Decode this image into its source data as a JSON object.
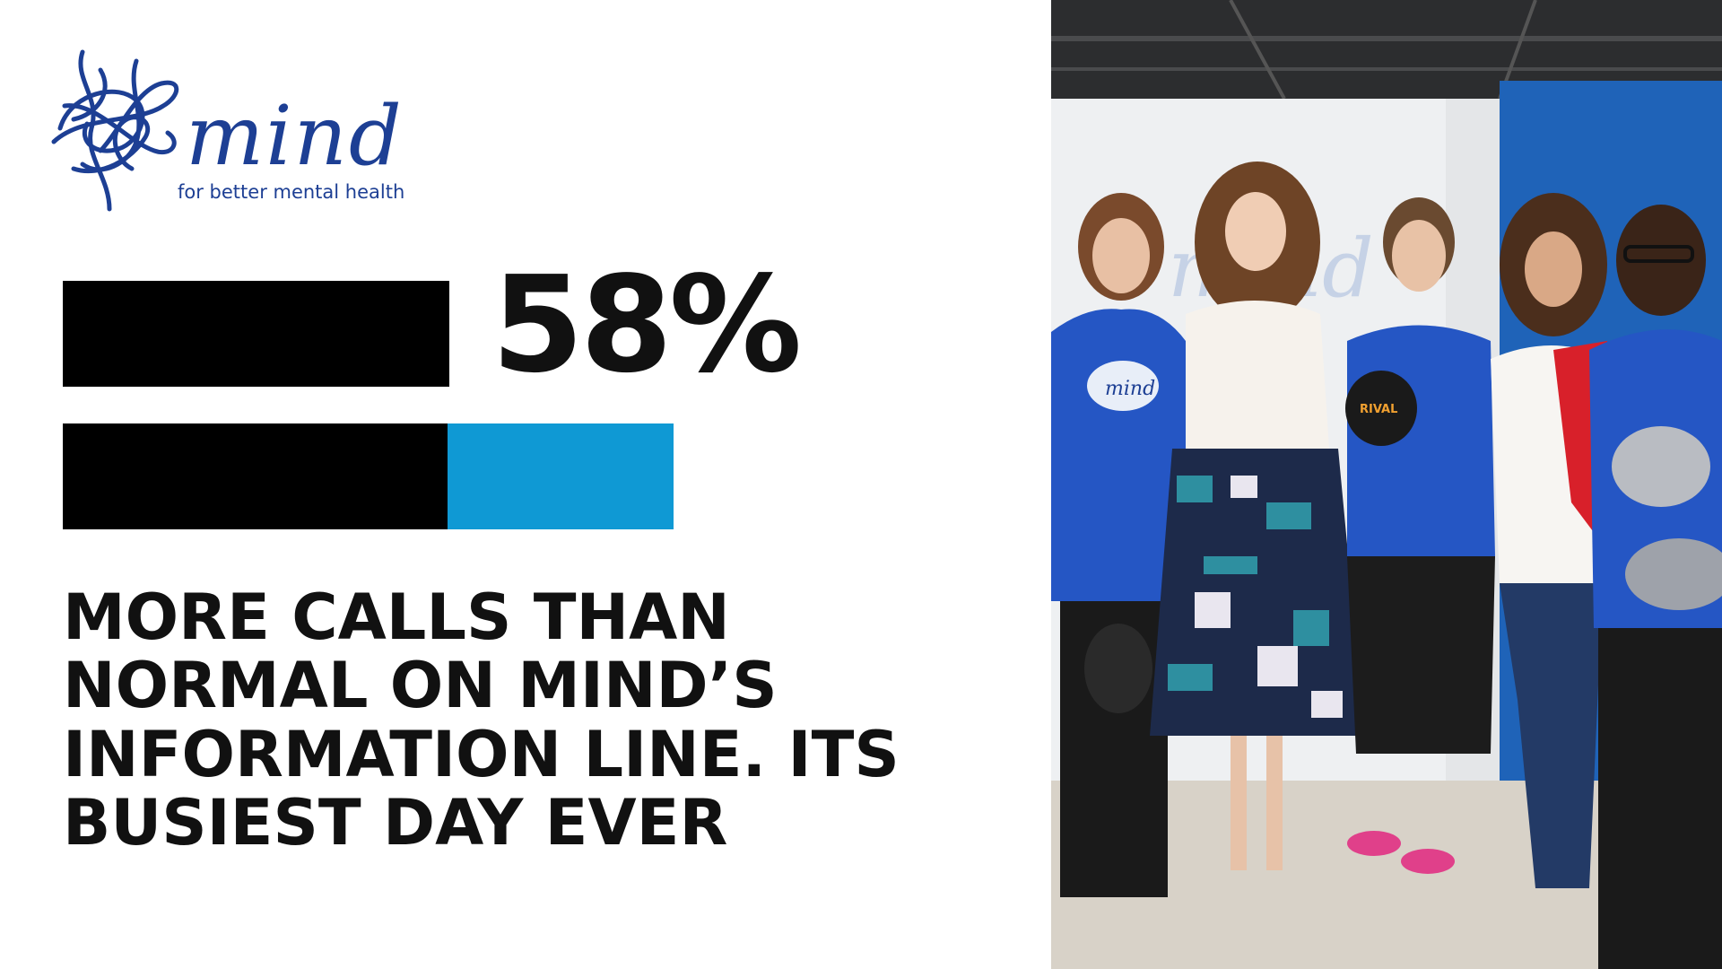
{
  "logo": {
    "wordmark": "mind",
    "tagline": "for better mental health"
  },
  "stat": {
    "percent_label": "58%",
    "comparison_fill_fraction": 0.63,
    "lines": [
      "MORE CALLS THAN",
      "NORMAL ON MIND’S",
      "INFORMATION LINE. ITS",
      "BUSIEST DAY EVER"
    ]
  },
  "photo": {
    "shirt_logo_text": "mind",
    "glove_brand": "RIVAL"
  },
  "colors": {
    "brand_navy": "#1d3f94",
    "bar_black": "#000000",
    "bar_blue": "#0f99d4",
    "text": "#111111"
  }
}
